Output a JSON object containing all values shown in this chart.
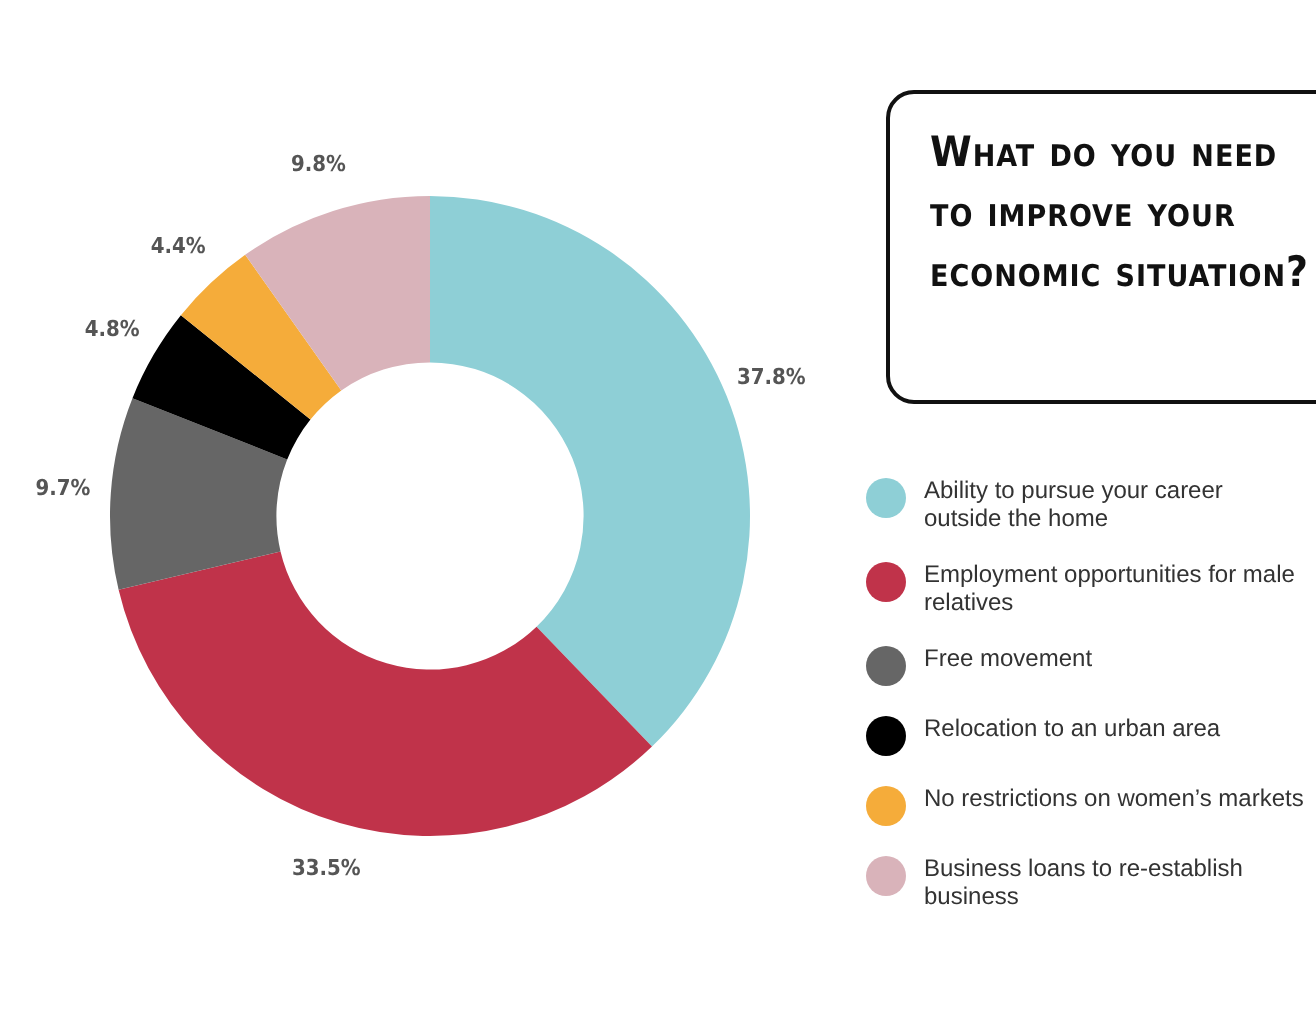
{
  "chart_data": {
    "type": "donut",
    "title": "What do you need to improve your economic situation?",
    "categories": [
      "Ability to pursue your career outside the home",
      "Employment opportunities for male relatives",
      "Free movement",
      "Relocation to an urban area",
      "No restrictions on women’s markets",
      "Business loans to re-establish business"
    ],
    "values": [
      37.8,
      33.5,
      9.7,
      4.8,
      4.4,
      9.8
    ],
    "value_labels": [
      "37.8%",
      "33.5%",
      "9.7%",
      "4.8%",
      "4.4%",
      "9.8%"
    ],
    "colors": [
      "#8ecfd6",
      "#c0334a",
      "#666666",
      "#000000",
      "#f5ac3a",
      "#d9b3ba"
    ],
    "legend": "right"
  }
}
